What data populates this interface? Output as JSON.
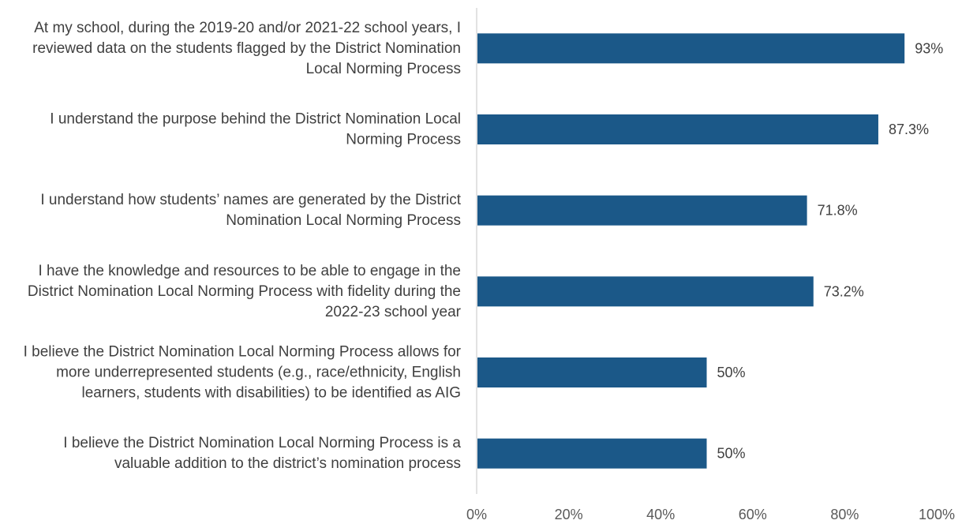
{
  "chart_data": {
    "type": "bar",
    "orientation": "horizontal",
    "categories": [
      "At my school, during the 2019-20 and/or 2021-22 school years, I reviewed data on the students flagged by the District Nomination Local Norming Process",
      "I understand the purpose behind the District Nomination Local Norming Process",
      "I understand how students’ names are generated by the District Nomination Local Norming Process",
      "I have the knowledge and resources to be able to engage in the District Nomination Local Norming Process with fidelity during the 2022-23 school year",
      "I believe the District Nomination Local Norming Process allows for more underrepresented students (e.g., race/ethnicity, English learners, students with disabilities) to be identified as AIG",
      "I believe the District Nomination Local Norming Process is a valuable addition to the district’s nomination process"
    ],
    "category_lines": [
      [
        "At my school, during the 2019-20 and/or 2021-22 school years, I",
        "reviewed data on the students flagged by the District Nomination",
        "Local Norming Process"
      ],
      [
        "I understand the purpose behind the District Nomination Local",
        "Norming Process"
      ],
      [
        "I understand how students’ names are generated by the District",
        "Nomination Local Norming Process"
      ],
      [
        "I have the knowledge and resources to be able to engage in the",
        "District Nomination Local Norming Process with fidelity during the",
        "2022-23 school year"
      ],
      [
        "I believe the District Nomination Local Norming Process allows for",
        "more underrepresented students (e.g., race/ethnicity, English",
        "learners, students with disabilities) to be identified as AIG"
      ],
      [
        "I believe the District Nomination Local Norming Process is a",
        "valuable addition to the district’s nomination process"
      ]
    ],
    "values": [
      93,
      87.3,
      71.8,
      73.2,
      50,
      50
    ],
    "data_labels": [
      "93%",
      "87.3%",
      "71.8%",
      "73.2%",
      "50%",
      "50%"
    ],
    "xlim": [
      0,
      100
    ],
    "x_ticks": [
      0,
      20,
      40,
      60,
      80,
      100
    ],
    "x_tick_labels": [
      "0%",
      "20%",
      "40%",
      "60%",
      "80%",
      "100%"
    ],
    "bar_color": "#1b5888",
    "axis_color": "#d9d9d9",
    "grid": false,
    "legend": "none"
  }
}
